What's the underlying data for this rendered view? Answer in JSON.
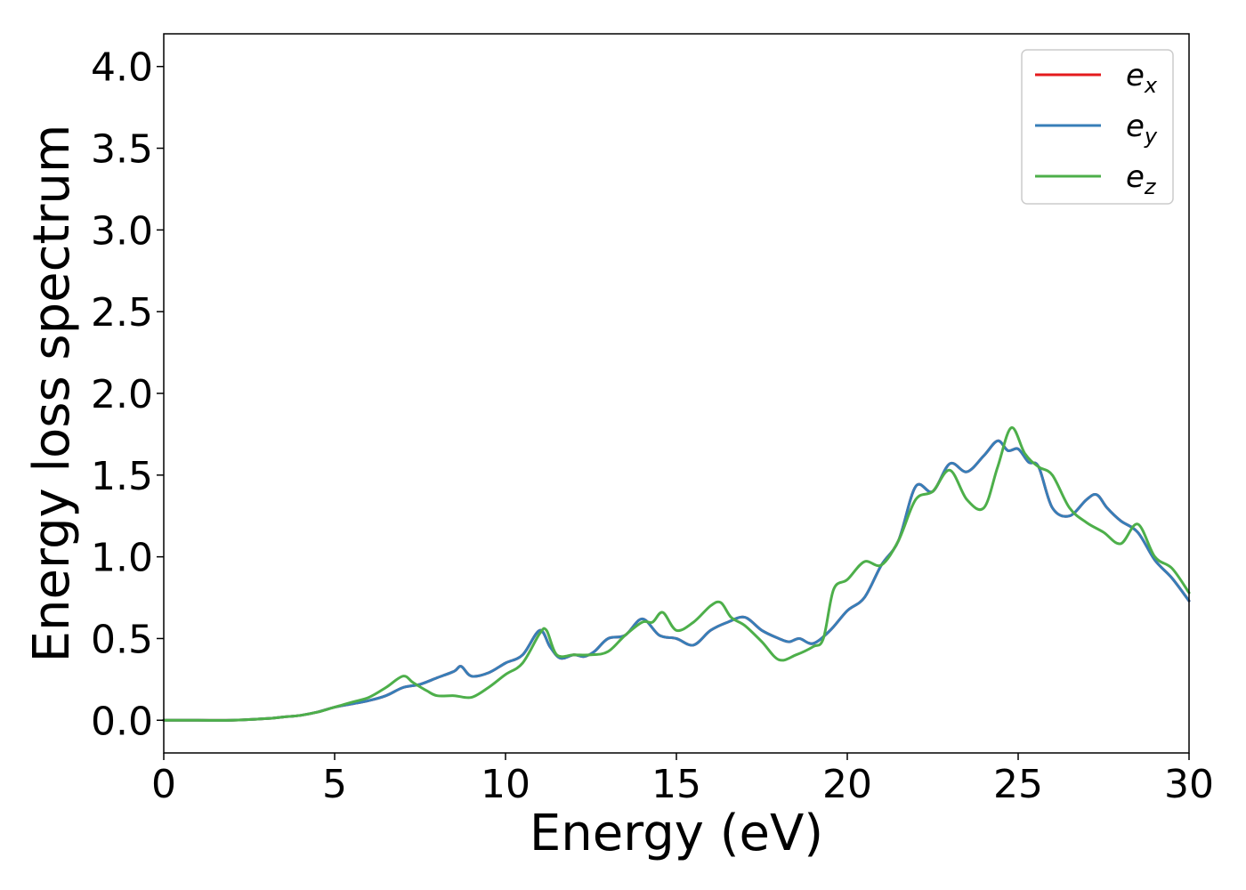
{
  "chart_data": {
    "type": "line",
    "title": "",
    "xlabel": "Energy (eV)",
    "ylabel": "Energy loss spectrum",
    "xlim": [
      0,
      30
    ],
    "ylim": [
      -0.2,
      4.2
    ],
    "x_ticks": [
      "0",
      "5",
      "10",
      "15",
      "20",
      "25",
      "30"
    ],
    "y_ticks": [
      "0.0",
      "0.5",
      "1.0",
      "1.5",
      "2.0",
      "2.5",
      "3.0",
      "3.5",
      "4.0"
    ],
    "grid": false,
    "legend_position": "top-right",
    "series": [
      {
        "name": "e",
        "subscript": "x",
        "color": "#e41a1c",
        "x": [
          0,
          1,
          2,
          3,
          3.5,
          4,
          4.5,
          5,
          5.5,
          6,
          6.5,
          7,
          7.5,
          8,
          8.5,
          8.7,
          9,
          9.5,
          10,
          10.5,
          11,
          11.3,
          11.6,
          12,
          12.3,
          12.6,
          13,
          13.5,
          14,
          14.5,
          15,
          15.5,
          16,
          16.5,
          17,
          17.5,
          18,
          18.3,
          18.6,
          19,
          19.5,
          20,
          20.5,
          21,
          21.5,
          22,
          22.5,
          23,
          23.5,
          24,
          24.4,
          24.7,
          25,
          25.3,
          25.6,
          26,
          26.5,
          27,
          27.3,
          27.6,
          28,
          28.5,
          29,
          29.5,
          30
        ],
        "y": [
          0,
          0,
          0,
          0.01,
          0.02,
          0.03,
          0.05,
          0.08,
          0.1,
          0.12,
          0.15,
          0.2,
          0.22,
          0.26,
          0.3,
          0.33,
          0.27,
          0.29,
          0.35,
          0.4,
          0.55,
          0.45,
          0.38,
          0.4,
          0.39,
          0.42,
          0.5,
          0.52,
          0.62,
          0.52,
          0.5,
          0.46,
          0.55,
          0.6,
          0.63,
          0.55,
          0.5,
          0.48,
          0.5,
          0.47,
          0.55,
          0.67,
          0.75,
          0.95,
          1.1,
          1.43,
          1.4,
          1.57,
          1.52,
          1.62,
          1.71,
          1.65,
          1.66,
          1.58,
          1.55,
          1.3,
          1.25,
          1.35,
          1.38,
          1.3,
          1.22,
          1.15,
          0.98,
          0.87,
          0.73
        ]
      },
      {
        "name": "e",
        "subscript": "y",
        "color": "#377eb8",
        "x": [
          0,
          1,
          2,
          3,
          3.5,
          4,
          4.5,
          5,
          5.5,
          6,
          6.5,
          7,
          7.5,
          8,
          8.5,
          8.7,
          9,
          9.5,
          10,
          10.5,
          11,
          11.3,
          11.6,
          12,
          12.3,
          12.6,
          13,
          13.5,
          14,
          14.5,
          15,
          15.5,
          16,
          16.5,
          17,
          17.5,
          18,
          18.3,
          18.6,
          19,
          19.5,
          20,
          20.5,
          21,
          21.5,
          22,
          22.5,
          23,
          23.5,
          24,
          24.4,
          24.7,
          25,
          25.3,
          25.6,
          26,
          26.5,
          27,
          27.3,
          27.6,
          28,
          28.5,
          29,
          29.5,
          30
        ],
        "y": [
          0,
          0,
          0,
          0.01,
          0.02,
          0.03,
          0.05,
          0.08,
          0.1,
          0.12,
          0.15,
          0.2,
          0.22,
          0.26,
          0.3,
          0.33,
          0.27,
          0.29,
          0.35,
          0.4,
          0.55,
          0.45,
          0.38,
          0.4,
          0.39,
          0.42,
          0.5,
          0.52,
          0.62,
          0.52,
          0.5,
          0.46,
          0.55,
          0.6,
          0.63,
          0.55,
          0.5,
          0.48,
          0.5,
          0.47,
          0.55,
          0.67,
          0.75,
          0.95,
          1.1,
          1.43,
          1.4,
          1.57,
          1.52,
          1.62,
          1.71,
          1.65,
          1.66,
          1.58,
          1.55,
          1.3,
          1.25,
          1.35,
          1.38,
          1.3,
          1.22,
          1.15,
          0.98,
          0.87,
          0.73
        ]
      },
      {
        "name": "e",
        "subscript": "z",
        "color": "#4daf4a",
        "x": [
          0,
          1,
          2,
          3,
          3.5,
          4,
          4.5,
          5,
          5.5,
          6,
          6.5,
          7,
          7.3,
          7.7,
          8,
          8.5,
          9,
          9.5,
          10,
          10.5,
          11,
          11.2,
          11.5,
          12,
          12.5,
          13,
          13.5,
          14,
          14.3,
          14.6,
          15,
          15.5,
          16,
          16.3,
          16.6,
          17,
          17.5,
          18,
          18.5,
          19,
          19.3,
          19.6,
          20,
          20.5,
          21,
          21.5,
          22,
          22.5,
          23,
          23.5,
          24,
          24.4,
          24.8,
          25.2,
          25.6,
          26,
          26.5,
          27,
          27.5,
          28,
          28.5,
          29,
          29.5,
          30
        ],
        "y": [
          0,
          0,
          0,
          0.01,
          0.02,
          0.03,
          0.05,
          0.08,
          0.11,
          0.14,
          0.2,
          0.27,
          0.23,
          0.18,
          0.15,
          0.15,
          0.14,
          0.2,
          0.28,
          0.35,
          0.53,
          0.55,
          0.4,
          0.4,
          0.4,
          0.42,
          0.52,
          0.6,
          0.6,
          0.66,
          0.55,
          0.6,
          0.7,
          0.72,
          0.63,
          0.58,
          0.48,
          0.37,
          0.4,
          0.45,
          0.5,
          0.8,
          0.86,
          0.97,
          0.95,
          1.1,
          1.35,
          1.4,
          1.53,
          1.35,
          1.3,
          1.55,
          1.79,
          1.63,
          1.55,
          1.5,
          1.3,
          1.21,
          1.15,
          1.08,
          1.2,
          1.0,
          0.93,
          0.78
        ]
      }
    ]
  }
}
